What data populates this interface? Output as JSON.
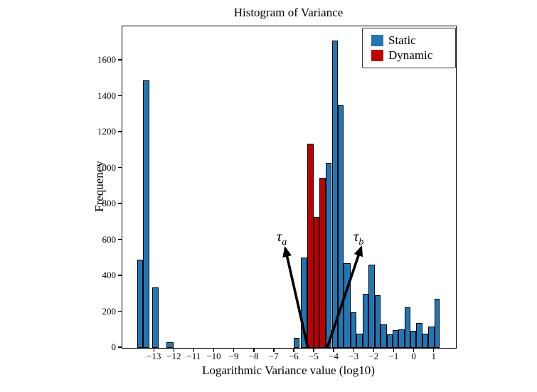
{
  "title": "Histogram of Variance",
  "xlabel": "Logarithmic Variance value (log10)",
  "ylabel": "Frequency",
  "legend": {
    "static_label": "Static",
    "dynamic_label": "Dynamic"
  },
  "colors": {
    "static": "#2376b4",
    "dynamic": "#c00000",
    "bar_edge": "#000000",
    "arrow": "#000000",
    "axis": "#000000"
  },
  "chart_data": {
    "type": "bar",
    "subtype": "histogram",
    "title": "Histogram of Variance",
    "xlabel": "Logarithmic Variance value (log10)",
    "ylabel": "Frequency",
    "xlim": [
      -14.61,
      2.08
    ],
    "ylim": [
      0,
      1790
    ],
    "x_ticks": [
      -13,
      -12,
      -11,
      -10,
      -9,
      -8,
      -7,
      -6,
      -5,
      -4,
      -3,
      -2,
      -1,
      0,
      1
    ],
    "y_ticks": [
      0,
      200,
      400,
      600,
      800,
      1000,
      1200,
      1400,
      1600
    ],
    "grid": false,
    "legend_position": "upper right",
    "series": [
      {
        "name": "Static",
        "color": "#2376b4"
      },
      {
        "name": "Dynamic",
        "color": "#c00000"
      }
    ],
    "bars": [
      {
        "x0": -13.87,
        "x1": -13.57,
        "freq": 490,
        "series": "Static"
      },
      {
        "x0": -13.57,
        "x1": -13.27,
        "freq": 1490,
        "series": "Static"
      },
      {
        "x0": -13.1,
        "x1": -12.78,
        "freq": 335,
        "series": "Static"
      },
      {
        "x0": -12.39,
        "x1": -12.03,
        "freq": 30,
        "series": "Static"
      },
      {
        "x0": -6.04,
        "x1": -5.74,
        "freq": 55,
        "series": "Static"
      },
      {
        "x0": -5.67,
        "x1": -5.36,
        "freq": 505,
        "series": "Static"
      },
      {
        "x0": -5.36,
        "x1": -5.05,
        "freq": 1135,
        "series": "Dynamic"
      },
      {
        "x0": -5.05,
        "x1": -4.75,
        "freq": 730,
        "series": "Dynamic"
      },
      {
        "x0": -4.75,
        "x1": -4.44,
        "freq": 945,
        "series": "Dynamic"
      },
      {
        "x0": -4.44,
        "x1": -4.13,
        "freq": 1030,
        "series": "Static"
      },
      {
        "x0": -4.13,
        "x1": -3.83,
        "freq": 1710,
        "series": "Static"
      },
      {
        "x0": -3.83,
        "x1": -3.53,
        "freq": 1350,
        "series": "Static"
      },
      {
        "x0": -3.53,
        "x1": -3.2,
        "freq": 470,
        "series": "Static"
      },
      {
        "x0": -3.18,
        "x1": -2.89,
        "freq": 200,
        "series": "Static"
      },
      {
        "x0": -2.89,
        "x1": -2.59,
        "freq": 80,
        "series": "Static"
      },
      {
        "x0": -2.59,
        "x1": -2.3,
        "freq": 300,
        "series": "Static"
      },
      {
        "x0": -2.3,
        "x1": -1.98,
        "freq": 465,
        "series": "Static"
      },
      {
        "x0": -1.98,
        "x1": -1.68,
        "freq": 295,
        "series": "Static"
      },
      {
        "x0": -1.68,
        "x1": -1.38,
        "freq": 130,
        "series": "Static"
      },
      {
        "x0": -1.38,
        "x1": -1.09,
        "freq": 75,
        "series": "Static"
      },
      {
        "x0": -1.09,
        "x1": -0.79,
        "freq": 100,
        "series": "Static"
      },
      {
        "x0": -0.79,
        "x1": -0.49,
        "freq": 105,
        "series": "Static"
      },
      {
        "x0": -0.49,
        "x1": -0.2,
        "freq": 225,
        "series": "Static"
      },
      {
        "x0": -0.2,
        "x1": 0.1,
        "freq": 95,
        "series": "Static"
      },
      {
        "x0": 0.1,
        "x1": 0.4,
        "freq": 140,
        "series": "Static"
      },
      {
        "x0": 0.4,
        "x1": 0.7,
        "freq": 80,
        "series": "Static"
      },
      {
        "x0": 0.7,
        "x1": 1.0,
        "freq": 120,
        "series": "Static"
      },
      {
        "x0": 1.0,
        "x1": 1.27,
        "freq": 275,
        "series": "Static"
      }
    ],
    "annotations": [
      {
        "symbol": "τ",
        "subscript": "a",
        "label_x": -6.64,
        "label_y": 618,
        "arrow_tail_x": -5.33,
        "arrow_tail_y": 0,
        "arrow_head_x": -6.46,
        "arrow_head_y": 555
      },
      {
        "symbol": "τ",
        "subscript": "b",
        "label_x": -2.79,
        "label_y": 618,
        "arrow_tail_x": -4.36,
        "arrow_tail_y": 0,
        "arrow_head_x": -2.66,
        "arrow_head_y": 559
      }
    ]
  }
}
